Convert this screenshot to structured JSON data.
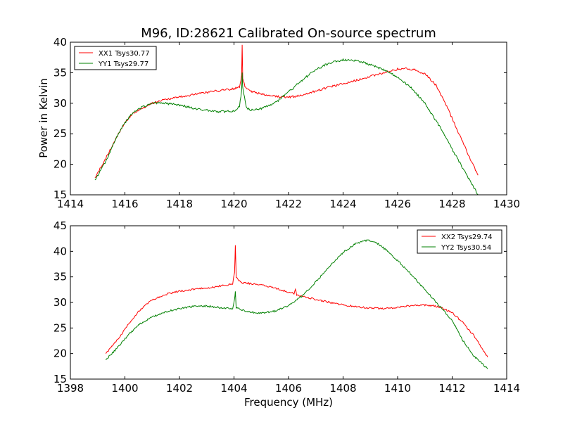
{
  "figure_title": "M96, ID:28621 Calibrated On-source spectrum",
  "colors": {
    "xx": "#ff0000",
    "yy": "#008000"
  },
  "chart_data": [
    {
      "type": "line",
      "title": "M96, ID:28621 Calibrated On-source spectrum",
      "xlabel": "",
      "ylabel": "Power in Kelvin",
      "xlim": [
        1414,
        1430
      ],
      "ylim": [
        15,
        40
      ],
      "xticks": [
        1414,
        1416,
        1418,
        1420,
        1422,
        1424,
        1426,
        1428,
        1430
      ],
      "yticks": [
        15,
        20,
        25,
        30,
        35,
        40
      ],
      "legend": "top-left",
      "grid": false,
      "series": [
        {
          "name": "XX1 Tsys30.77",
          "color": "#ff0000",
          "x": [
            1414.9,
            1415.3,
            1415.7,
            1416.0,
            1416.3,
            1416.7,
            1417.0,
            1417.5,
            1418.0,
            1418.5,
            1419.0,
            1419.5,
            1420.0,
            1420.2,
            1420.28,
            1420.3,
            1420.32,
            1420.4,
            1420.6,
            1421.0,
            1421.5,
            1422.0,
            1422.5,
            1423.0,
            1423.5,
            1424.0,
            1424.5,
            1425.0,
            1425.5,
            1426.0,
            1426.3,
            1426.6,
            1427.0,
            1427.4,
            1427.8,
            1428.2,
            1428.6,
            1428.95
          ],
          "y": [
            17.8,
            21.0,
            24.5,
            26.8,
            28.3,
            29.3,
            30.0,
            30.6,
            31.0,
            31.4,
            31.8,
            32.1,
            32.4,
            32.6,
            34.5,
            39.7,
            34.0,
            32.8,
            32.0,
            31.5,
            31.1,
            31.0,
            31.3,
            32.0,
            32.7,
            33.2,
            33.8,
            34.4,
            35.0,
            35.6,
            35.7,
            35.5,
            34.8,
            33.0,
            29.5,
            25.5,
            21.5,
            18.2
          ]
        },
        {
          "name": "YY1 Tsys29.77",
          "color": "#008000",
          "x": [
            1414.9,
            1415.3,
            1415.7,
            1416.0,
            1416.3,
            1416.7,
            1417.0,
            1417.5,
            1418.0,
            1418.5,
            1419.0,
            1419.5,
            1420.0,
            1420.2,
            1420.28,
            1420.3,
            1420.32,
            1420.45,
            1420.6,
            1421.0,
            1421.5,
            1422.0,
            1422.5,
            1423.0,
            1423.5,
            1424.0,
            1424.5,
            1425.0,
            1425.5,
            1426.0,
            1426.5,
            1427.0,
            1427.5,
            1428.0,
            1428.5,
            1428.95
          ],
          "y": [
            17.3,
            20.5,
            24.5,
            26.8,
            28.5,
            29.5,
            30.0,
            30.0,
            29.7,
            29.2,
            28.8,
            28.6,
            28.7,
            29.5,
            32.0,
            35.1,
            32.5,
            29.3,
            28.9,
            29.1,
            30.0,
            31.8,
            33.8,
            35.5,
            36.6,
            37.1,
            37.0,
            36.3,
            35.5,
            34.3,
            32.5,
            30.0,
            26.5,
            22.5,
            18.5,
            15.0
          ]
        }
      ]
    },
    {
      "type": "line",
      "title": "",
      "xlabel": "Frequency (MHz)",
      "ylabel": "",
      "xlim": [
        1398,
        1414
      ],
      "ylim": [
        15,
        45
      ],
      "xticks": [
        1398,
        1400,
        1402,
        1404,
        1406,
        1408,
        1410,
        1412,
        1414
      ],
      "yticks": [
        15,
        20,
        25,
        30,
        35,
        40,
        45
      ],
      "legend": "top-right",
      "grid": false,
      "series": [
        {
          "name": "XX2 Tsys29.74",
          "color": "#ff0000",
          "x": [
            1399.3,
            1399.7,
            1400.1,
            1400.5,
            1401.0,
            1401.5,
            1402.0,
            1402.5,
            1403.0,
            1403.5,
            1403.95,
            1404.02,
            1404.05,
            1404.08,
            1404.15,
            1404.3,
            1404.6,
            1405.0,
            1405.5,
            1406.0,
            1406.2,
            1406.25,
            1406.3,
            1406.5,
            1407.0,
            1407.5,
            1408.0,
            1408.5,
            1409.0,
            1409.5,
            1410.0,
            1410.5,
            1411.0,
            1411.5,
            1412.0,
            1412.4,
            1412.8,
            1413.3
          ],
          "y": [
            20.0,
            22.5,
            25.5,
            28.3,
            30.5,
            31.6,
            32.2,
            32.5,
            32.8,
            33.2,
            33.6,
            36.0,
            41.2,
            35.0,
            34.5,
            33.8,
            33.7,
            33.4,
            32.8,
            32.0,
            31.8,
            32.6,
            31.5,
            31.2,
            30.6,
            30.0,
            29.5,
            29.2,
            28.9,
            28.8,
            29.0,
            29.4,
            29.5,
            29.2,
            28.0,
            26.0,
            23.5,
            19.3
          ]
        },
        {
          "name": "YY2 Tsys30.54",
          "color": "#008000",
          "x": [
            1399.3,
            1399.7,
            1400.1,
            1400.5,
            1401.0,
            1401.5,
            1402.0,
            1402.5,
            1403.0,
            1403.5,
            1403.95,
            1404.02,
            1404.05,
            1404.08,
            1404.3,
            1404.6,
            1405.0,
            1405.5,
            1406.0,
            1406.5,
            1407.0,
            1407.5,
            1408.0,
            1408.5,
            1408.9,
            1409.2,
            1409.6,
            1410.0,
            1410.5,
            1411.0,
            1411.5,
            1412.0,
            1412.4,
            1412.8,
            1413.3
          ],
          "y": [
            18.8,
            21.0,
            23.5,
            25.6,
            27.2,
            28.2,
            28.8,
            29.2,
            29.3,
            29.0,
            28.7,
            30.5,
            32.3,
            29.0,
            28.5,
            28.1,
            27.9,
            28.3,
            29.4,
            31.3,
            34.0,
            37.0,
            39.8,
            41.6,
            42.2,
            41.8,
            40.2,
            38.2,
            35.5,
            32.5,
            29.5,
            26.5,
            22.5,
            19.5,
            17.0
          ]
        }
      ]
    }
  ]
}
